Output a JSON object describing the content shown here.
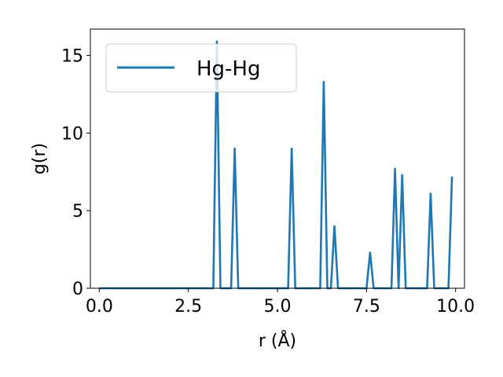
{
  "chart_data": {
    "type": "line",
    "xlabel": "r (Å)",
    "ylabel": "g(r)",
    "xlim": [
      -0.25,
      10.25
    ],
    "ylim": [
      0,
      16.7
    ],
    "xticks": [
      0.0,
      2.5,
      5.0,
      7.5,
      10.0
    ],
    "xtick_labels": [
      "0.0",
      "2.5",
      "5.0",
      "7.5",
      "10.0"
    ],
    "yticks": [
      0,
      5,
      10,
      15
    ],
    "ytick_labels": [
      "0",
      "5",
      "10",
      "15"
    ],
    "grid": false,
    "legend_position": "top-left",
    "series": [
      {
        "name": "Hg-Hg",
        "color": "#1f77b4",
        "x": [
          0.0,
          3.2,
          3.3,
          3.4,
          3.7,
          3.8,
          3.9,
          5.3,
          5.4,
          5.5,
          6.2,
          6.3,
          6.4,
          6.5,
          6.6,
          6.7,
          7.5,
          7.6,
          7.7,
          8.2,
          8.3,
          8.4,
          8.5,
          8.6,
          9.2,
          9.3,
          9.4,
          9.8,
          9.9
        ],
        "y": [
          0,
          0,
          15.9,
          0,
          0,
          9.0,
          0,
          0,
          9.0,
          0,
          0,
          13.3,
          0,
          0,
          4.0,
          0,
          0,
          2.3,
          0,
          0,
          7.7,
          0,
          7.3,
          0,
          0,
          6.1,
          0,
          0,
          7.2
        ]
      }
    ]
  }
}
